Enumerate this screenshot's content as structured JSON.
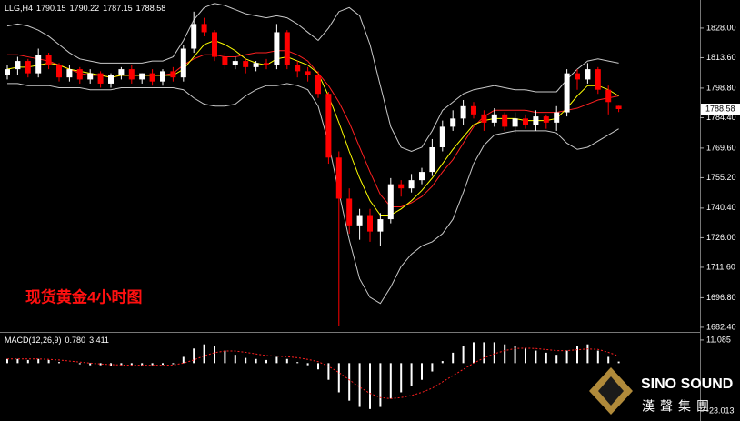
{
  "chart_data": [
    {
      "type": "candlestick",
      "title": "LLG,H4",
      "annotation": "现货黄金4小时图",
      "up_color": "#ffffff",
      "down_color": "#ff0000",
      "ylim": [
        1680.6,
        1840.8
      ],
      "yticks": [
        {
          "value": 1828,
          "label": "1828.00"
        },
        {
          "value": 1813.6,
          "label": "1813.60"
        },
        {
          "value": 1798.8,
          "label": "1798.80"
        },
        {
          "value": 1784.4,
          "label": "1784.40"
        },
        {
          "value": 1769.6,
          "label": "1769.60"
        },
        {
          "value": 1755.2,
          "label": "1755.20"
        },
        {
          "value": 1740.4,
          "label": "1740.40"
        },
        {
          "value": 1726,
          "label": "1726.00"
        },
        {
          "value": 1711.6,
          "label": "1711.60"
        },
        {
          "value": 1696.8,
          "label": "1696.80"
        },
        {
          "value": 1682.4,
          "label": "1682.40"
        }
      ],
      "open": [
        1805,
        1808,
        1812,
        1806,
        1815,
        1810,
        1804,
        1808,
        1803,
        1806,
        1801,
        1805,
        1808,
        1803,
        1806,
        1802,
        1807,
        1804,
        1818,
        1830,
        1826,
        1814,
        1810,
        1812,
        1809,
        1811,
        1810,
        1826,
        1810,
        1807,
        1805,
        1796,
        1765,
        1745,
        1732,
        1737,
        1729,
        1735,
        1752,
        1750,
        1754,
        1758,
        1770,
        1780,
        1784,
        1790,
        1786,
        1782,
        1786,
        1780,
        1784,
        1781,
        1785,
        1782,
        1787,
        1806,
        1803,
        1808,
        1798,
        1790.15
      ],
      "high": [
        1810,
        1814,
        1813,
        1818,
        1816,
        1811,
        1810,
        1809,
        1808,
        1807,
        1806,
        1809,
        1810,
        1806,
        1808,
        1808,
        1809,
        1820,
        1836,
        1833,
        1827,
        1816,
        1814,
        1813,
        1812,
        1813,
        1830,
        1827,
        1812,
        1809,
        1807,
        1797,
        1768,
        1750,
        1740,
        1740,
        1738,
        1755,
        1754,
        1757,
        1760,
        1774,
        1783,
        1788,
        1793,
        1792,
        1788,
        1789,
        1787,
        1787,
        1786,
        1788,
        1786,
        1790,
        1808,
        1808,
        1811,
        1809,
        1800,
        1790.22
      ],
      "low": [
        1803,
        1805,
        1804,
        1804,
        1808,
        1802,
        1802,
        1801,
        1801,
        1799,
        1799,
        1803,
        1801,
        1801,
        1800,
        1800,
        1802,
        1802,
        1816,
        1824,
        1812,
        1808,
        1808,
        1806,
        1807,
        1808,
        1808,
        1808,
        1804,
        1802,
        1794,
        1762,
        1683,
        1728,
        1725,
        1724,
        1722,
        1733,
        1746,
        1748,
        1752,
        1756,
        1768,
        1778,
        1781,
        1784,
        1778,
        1780,
        1778,
        1777,
        1779,
        1778,
        1779,
        1778,
        1785,
        1798,
        1801,
        1796,
        1786,
        1787.15
      ],
      "close": [
        1808,
        1812,
        1806,
        1815,
        1810,
        1804,
        1808,
        1803,
        1806,
        1801,
        1805,
        1808,
        1803,
        1806,
        1802,
        1807,
        1804,
        1818,
        1830,
        1826,
        1814,
        1810,
        1812,
        1809,
        1811,
        1810,
        1826,
        1810,
        1807,
        1805,
        1796,
        1765,
        1745,
        1732,
        1737,
        1729,
        1735,
        1752,
        1750,
        1754,
        1758,
        1770,
        1780,
        1784,
        1790,
        1786,
        1782,
        1786,
        1780,
        1784,
        1781,
        1785,
        1782,
        1787,
        1806,
        1803,
        1808,
        1798,
        1792,
        1788.58
      ],
      "overlays": [
        {
          "color": "#c8c8c8",
          "values": [
            1829,
            1830,
            1829,
            1827,
            1824,
            1820,
            1816,
            1813,
            1812,
            1811,
            1811,
            1811,
            1811,
            1811,
            1812,
            1812,
            1814,
            1822,
            1832,
            1838,
            1840,
            1839,
            1837,
            1835,
            1834,
            1833,
            1834,
            1833,
            1830,
            1826,
            1822,
            1828,
            1836,
            1838,
            1834,
            1820,
            1800,
            1780,
            1770,
            1768,
            1770,
            1778,
            1788,
            1792,
            1796,
            1798,
            1799,
            1800,
            1799,
            1798,
            1798,
            1797,
            1797,
            1797,
            1803,
            1808,
            1812,
            1813,
            1812,
            1811
          ]
        },
        {
          "color": "#c8c8c8",
          "values": [
            1801,
            1801,
            1800,
            1800,
            1800,
            1799,
            1799,
            1799,
            1798,
            1798,
            1798,
            1799,
            1799,
            1799,
            1799,
            1799,
            1799,
            1798,
            1794,
            1791,
            1790,
            1790,
            1791,
            1795,
            1798,
            1800,
            1800,
            1801,
            1800,
            1798,
            1790,
            1772,
            1748,
            1725,
            1706,
            1697,
            1694,
            1702,
            1712,
            1718,
            1722,
            1724,
            1728,
            1735,
            1748,
            1762,
            1771,
            1776,
            1777,
            1778,
            1778,
            1778,
            1778,
            1777,
            1772,
            1769,
            1770,
            1773,
            1776,
            1779
          ]
        },
        {
          "color": "#ff2020",
          "values": [
            1815,
            1815,
            1814,
            1813,
            1812,
            1810,
            1808,
            1806,
            1805,
            1805,
            1804,
            1805,
            1805,
            1805,
            1805,
            1805,
            1806,
            1810,
            1813,
            1815,
            1815,
            1814,
            1814,
            1815,
            1816,
            1816,
            1817,
            1817,
            1815,
            1812,
            1806,
            1800,
            1792,
            1782,
            1770,
            1758,
            1747,
            1741,
            1741,
            1743,
            1746,
            1751,
            1758,
            1764,
            1772,
            1780,
            1785,
            1788,
            1788,
            1788,
            1788,
            1787,
            1787,
            1787,
            1788,
            1789,
            1791,
            1793,
            1794,
            1795
          ]
        },
        {
          "color": "#ffff00",
          "values": [
            1808,
            1809,
            1809,
            1810,
            1811,
            1810,
            1808,
            1807,
            1806,
            1805,
            1804,
            1805,
            1805,
            1805,
            1805,
            1805,
            1805,
            1808,
            1814,
            1820,
            1822,
            1820,
            1817,
            1813,
            1811,
            1810,
            1813,
            1814,
            1812,
            1810,
            1806,
            1795,
            1782,
            1768,
            1755,
            1744,
            1737,
            1737,
            1740,
            1744,
            1749,
            1755,
            1762,
            1769,
            1775,
            1781,
            1783,
            1784,
            1784,
            1784,
            1783,
            1783,
            1783,
            1784,
            1789,
            1795,
            1800,
            1800,
            1798,
            1795
          ]
        }
      ]
    },
    {
      "type": "macd",
      "title": "MACD(12,26,9)",
      "readout": {
        "values": [
          0.78,
          3.411
        ],
        "value_labels": [
          "0.780",
          "3.411"
        ]
      },
      "ylim": [
        -27.3,
        14.1
      ],
      "yticks": [
        11.085,
        -23.013
      ],
      "histogram": {
        "color": "#ffffff",
        "values": [
          2,
          2,
          1.5,
          2,
          1.5,
          0.5,
          0,
          -0.5,
          -1,
          -1,
          -1.5,
          -1,
          -1,
          -1.2,
          -1,
          -0.8,
          -0.5,
          3,
          7,
          9,
          8,
          6,
          4,
          2.5,
          2,
          1.5,
          3,
          2,
          0.5,
          -1,
          -3,
          -8,
          -14,
          -18,
          -21,
          -22,
          -21,
          -17,
          -14,
          -11,
          -8,
          -4,
          1,
          5,
          8,
          10,
          10,
          10,
          9,
          8,
          7,
          6,
          5,
          4,
          6,
          8,
          9,
          6,
          3,
          0.78
        ]
      },
      "signal": {
        "color": "#ff2020",
        "values": [
          2,
          2,
          2,
          2,
          1.8,
          1.5,
          1,
          0.5,
          0,
          -0.4,
          -0.7,
          -0.9,
          -1,
          -1,
          -1,
          -1,
          -0.9,
          0,
          1.5,
          3.5,
          5,
          5.8,
          5.8,
          5.2,
          4.4,
          3.6,
          3.4,
          3.1,
          2.6,
          1.8,
          0.7,
          -1.5,
          -4.5,
          -8,
          -11.5,
          -14.5,
          -16.5,
          -17,
          -16.5,
          -15.5,
          -14,
          -12,
          -9,
          -6,
          -3,
          0,
          2.5,
          4.5,
          6,
          7,
          7.2,
          7,
          6.5,
          6,
          6,
          6.4,
          6.8,
          6.6,
          5.2,
          3.411
        ]
      }
    }
  ],
  "logo": {
    "name": "SINO SOUND",
    "tagline": "漢聲集團"
  }
}
